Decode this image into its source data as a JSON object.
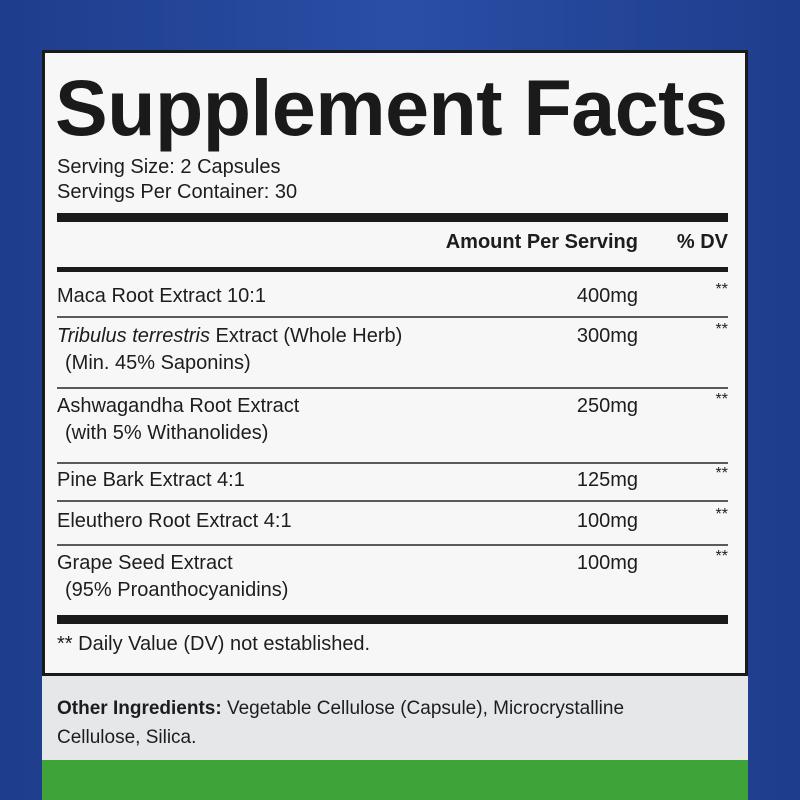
{
  "header": {
    "title": "Supplement Facts",
    "serving_size": "Serving Size: 2 Capsules",
    "servings_per_container": "Servings Per Container: 30"
  },
  "table": {
    "columns": [
      "Amount Per Serving",
      "% DV"
    ],
    "rows": [
      {
        "name": "Maca Root Extract 10:1",
        "amount": "400mg",
        "dv": "**"
      },
      {
        "name_italic": "Tribulus terrestris",
        "name": " Extract (Whole Herb)",
        "note": "(Min. 45% Saponins)",
        "amount": "300mg",
        "dv": "**"
      },
      {
        "name": "Ashwagandha Root Extract",
        "note": "(with 5% Withanolides)",
        "amount": "250mg",
        "dv": "**"
      },
      {
        "name": "Pine Bark Extract 4:1",
        "amount": "125mg",
        "dv": "**"
      },
      {
        "name": "Eleuthero Root Extract 4:1",
        "amount": "100mg",
        "dv": "**"
      },
      {
        "name": "Grape Seed Extract",
        "note": "(95% Proanthocyanidins)",
        "amount": "100mg",
        "dv": "**"
      }
    ]
  },
  "footnote": "** Daily Value (DV) not established.",
  "other_ingredients": {
    "label": "Other Ingredients:",
    "text": "Vegetable Cellulose (Capsule), Microcrystalline Cellulose, Silica."
  }
}
